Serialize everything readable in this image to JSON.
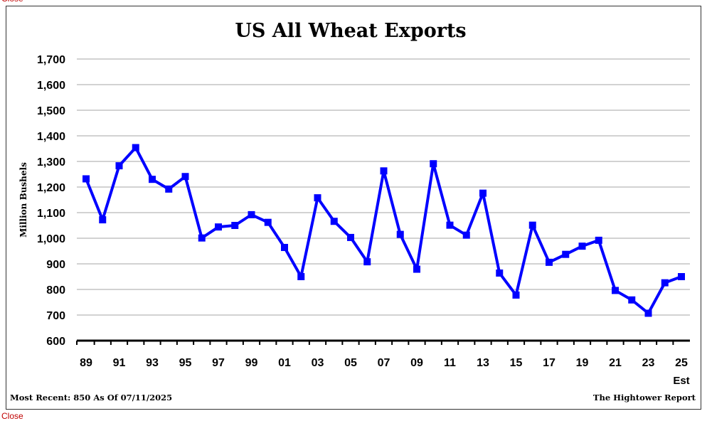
{
  "close_label": "Close",
  "chart_data": {
    "type": "line",
    "title": "US All Wheat Exports",
    "ylabel": "Million Bushels",
    "xlabel": "",
    "ylim": [
      600,
      1700
    ],
    "yticks": [
      600,
      700,
      800,
      900,
      1000,
      1100,
      1200,
      1300,
      1400,
      1500,
      1600,
      1700
    ],
    "ytick_labels": [
      "600",
      "700",
      "800",
      "900",
      "1,000",
      "1,100",
      "1,200",
      "1,300",
      "1,400",
      "1,500",
      "1,600",
      "1,700"
    ],
    "x": [
      "89",
      "90",
      "91",
      "92",
      "93",
      "94",
      "95",
      "96",
      "97",
      "98",
      "99",
      "00",
      "01",
      "02",
      "03",
      "04",
      "05",
      "06",
      "07",
      "08",
      "09",
      "10",
      "11",
      "12",
      "13",
      "14",
      "15",
      "16",
      "17",
      "18",
      "19",
      "20",
      "21",
      "22",
      "23",
      "24",
      "25"
    ],
    "xtick_labels": [
      "89",
      "91",
      "93",
      "95",
      "97",
      "99",
      "01",
      "03",
      "05",
      "07",
      "09",
      "11",
      "13",
      "15",
      "17",
      "19",
      "21",
      "23",
      "25"
    ],
    "x_last_note": "Est",
    "series": [
      {
        "color": "#0000ff",
        "marker": "square",
        "values": [
          1232,
          1072,
          1283,
          1354,
          1230,
          1192,
          1241,
          1001,
          1044,
          1050,
          1092,
          1062,
          964,
          850,
          1158,
          1066,
          1003,
          908,
          1263,
          1015,
          879,
          1291,
          1051,
          1012,
          1176,
          864,
          778,
          1051,
          906,
          937,
          969,
          992,
          796,
          759,
          707,
          826,
          850
        ]
      }
    ],
    "grid": "horizontal",
    "footer_left": "Most Recent: 850 As Of 07/11/2025",
    "footer_right": "The Hightower Report"
  }
}
